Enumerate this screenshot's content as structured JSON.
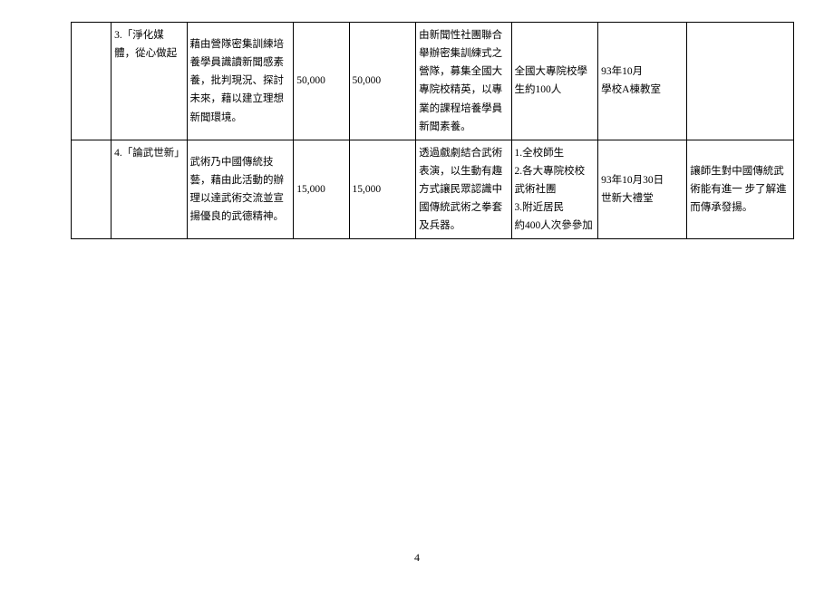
{
  "table": {
    "rows": [
      {
        "c0": "",
        "c1": "3.「淨化媒體，從心做起",
        "c2": "藉由營隊密集訓練培養學員識讀新聞感素養，批判現況、探討未來，藉以建立理想新聞環境。",
        "c3": "50,000",
        "c4": "50,000",
        "c5": "由新聞性社團聯合舉辦密集訓練式之營隊，募集全國大專院校精英，以專業的課程培養學員新聞素養。",
        "c6": "全國大專院校學生約100人",
        "c7": "93年10月\n學校A棟教室",
        "c8": ""
      },
      {
        "c0": "",
        "c1": "4.「論武世新」",
        "c2": "武術乃中國傳統技藝，藉由此活動的辦理以達武術交流並宣揚優良的武德精神。",
        "c3": "15,000",
        "c4": "15,000",
        "c5": "透過戲劇結合武術表演，以生動有趣方式讓民眾認識中國傳統武術之拳套及兵器。",
        "c6": "1.全校師生\n2.各大專院校校武術社團\n3.附近居民\n約400人次參參加",
        "c7": "93年10月30日\n世新大禮堂",
        "c8": "讓師生對中國傳統武術能有進一 步了解進而傳承發揚。"
      }
    ]
  },
  "page_number": "4"
}
